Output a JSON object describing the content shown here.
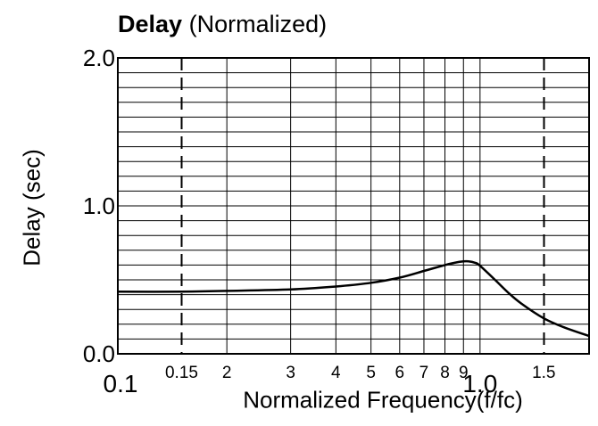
{
  "title": {
    "bold": "Delay",
    "rest": "(Normalized)"
  },
  "chart_data": {
    "type": "line",
    "title": "Delay (Normalized)",
    "xlabel": "Normalized Frequency(f/fc)",
    "ylabel": "Delay (sec)",
    "xscale": "log",
    "xlim": [
      0.1,
      2.0
    ],
    "ylim": [
      0.0,
      2.0
    ],
    "grid": true,
    "x_ticks": [
      {
        "value": 0.1,
        "label": "0.1",
        "major": true
      },
      {
        "value": 0.15,
        "label": "0.15",
        "major": false
      },
      {
        "value": 0.2,
        "label": "2",
        "major": false
      },
      {
        "value": 0.3,
        "label": "3",
        "major": false
      },
      {
        "value": 0.4,
        "label": "4",
        "major": false
      },
      {
        "value": 0.5,
        "label": "5",
        "major": false
      },
      {
        "value": 0.6,
        "label": "6",
        "major": false
      },
      {
        "value": 0.7,
        "label": "7",
        "major": false
      },
      {
        "value": 0.8,
        "label": "8",
        "major": false
      },
      {
        "value": 0.9,
        "label": "9",
        "major": false
      },
      {
        "value": 1.0,
        "label": "1.0",
        "major": true
      },
      {
        "value": 1.5,
        "label": "1.5",
        "major": false
      }
    ],
    "y_ticks": [
      {
        "value": 0.0,
        "label": "0.0"
      },
      {
        "value": 1.0,
        "label": "1.0"
      },
      {
        "value": 2.0,
        "label": "2.0"
      }
    ],
    "y_gridlines": [
      0.0,
      0.1,
      0.2,
      0.3,
      0.4,
      0.5,
      0.6,
      0.7,
      0.8,
      0.9,
      1.0,
      1.1,
      1.2,
      1.3,
      1.4,
      1.5,
      1.6,
      1.7,
      1.8,
      1.9,
      2.0
    ],
    "x_gridlines": [
      0.1,
      0.2,
      0.3,
      0.4,
      0.5,
      0.6,
      0.7,
      0.8,
      0.9,
      1.0,
      2.0
    ],
    "dashed_markers_x": [
      0.15,
      1.5
    ],
    "series": [
      {
        "x": [
          0.1,
          0.15,
          0.2,
          0.3,
          0.4,
          0.5,
          0.6,
          0.7,
          0.8,
          0.85,
          0.9,
          0.93,
          0.97,
          1.0,
          1.1,
          1.2,
          1.3,
          1.5,
          1.7,
          2.0
        ],
        "values": [
          0.42,
          0.42,
          0.425,
          0.435,
          0.455,
          0.48,
          0.515,
          0.56,
          0.6,
          0.615,
          0.625,
          0.625,
          0.615,
          0.595,
          0.5,
          0.41,
          0.34,
          0.24,
          0.18,
          0.12
        ]
      }
    ]
  }
}
